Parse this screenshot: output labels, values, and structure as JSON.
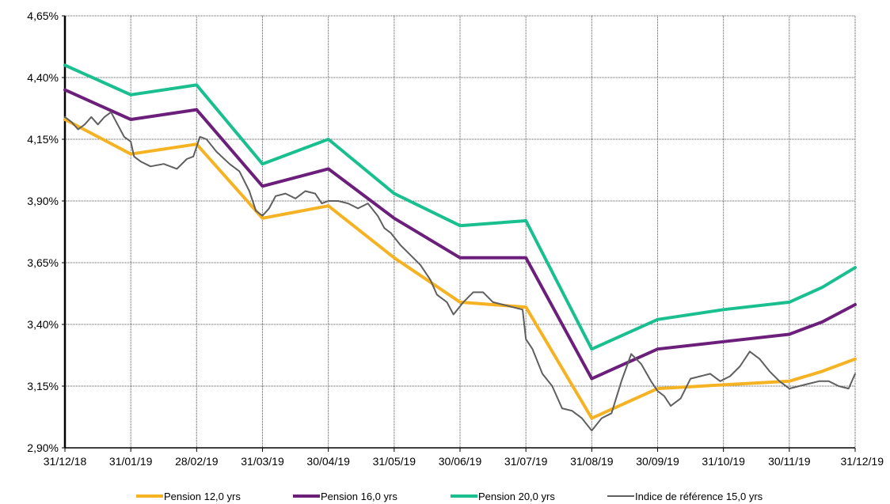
{
  "chart_data": {
    "type": "line",
    "title": "",
    "xlabel": "",
    "ylabel": "",
    "ylim": [
      2.9,
      4.65
    ],
    "y_ticks": [
      2.9,
      3.15,
      3.4,
      3.65,
      3.9,
      4.15,
      4.4,
      4.65
    ],
    "y_tick_labels": [
      "2,90%",
      "3,15%",
      "3,40%",
      "3,65%",
      "3,90%",
      "4,15%",
      "4,40%",
      "4,65%"
    ],
    "x_tick_labels": [
      "31/12/18",
      "31/01/19",
      "28/02/19",
      "31/03/19",
      "30/04/19",
      "31/05/19",
      "30/06/19",
      "31/07/19",
      "31/08/19",
      "30/09/19",
      "31/10/19",
      "30/11/19",
      "31/12/19"
    ],
    "grid": true,
    "legend_position": "bottom",
    "series": [
      {
        "name": "Pension 12,0 yrs",
        "color": "#f5b324",
        "points": [
          [
            0,
            4.23
          ],
          [
            1,
            4.09
          ],
          [
            2,
            4.13
          ],
          [
            3,
            3.83
          ],
          [
            4,
            3.88
          ],
          [
            5,
            3.67
          ],
          [
            6,
            3.49
          ],
          [
            7,
            3.47
          ],
          [
            8,
            3.02
          ],
          [
            9,
            3.14
          ],
          [
            10,
            3.155
          ],
          [
            11,
            3.17
          ],
          [
            11.5,
            3.21
          ],
          [
            12,
            3.26
          ]
        ]
      },
      {
        "name": "Pension 16,0 yrs",
        "color": "#6b1e7a",
        "points": [
          [
            0,
            4.35
          ],
          [
            1,
            4.23
          ],
          [
            2,
            4.27
          ],
          [
            3,
            3.96
          ],
          [
            4,
            4.03
          ],
          [
            5,
            3.83
          ],
          [
            6,
            3.67
          ],
          [
            7,
            3.67
          ],
          [
            8,
            3.18
          ],
          [
            9,
            3.3
          ],
          [
            10,
            3.33
          ],
          [
            11,
            3.36
          ],
          [
            11.5,
            3.41
          ],
          [
            12,
            3.48
          ]
        ]
      },
      {
        "name": "Pension 20,0 yrs",
        "color": "#1abf8f",
        "points": [
          [
            0,
            4.45
          ],
          [
            1,
            4.33
          ],
          [
            2,
            4.37
          ],
          [
            3,
            4.05
          ],
          [
            4,
            4.15
          ],
          [
            5,
            3.93
          ],
          [
            6,
            3.8
          ],
          [
            7,
            3.82
          ],
          [
            8,
            3.3
          ],
          [
            9,
            3.42
          ],
          [
            10,
            3.46
          ],
          [
            11,
            3.49
          ],
          [
            11.5,
            3.55
          ],
          [
            12,
            3.63
          ]
        ]
      },
      {
        "name": "Indice de référence 15,0 yrs",
        "color": "#5f5f5f",
        "points": [
          [
            0,
            4.24
          ],
          [
            0.1,
            4.22
          ],
          [
            0.2,
            4.19
          ],
          [
            0.3,
            4.21
          ],
          [
            0.4,
            4.24
          ],
          [
            0.5,
            4.21
          ],
          [
            0.6,
            4.24
          ],
          [
            0.7,
            4.26
          ],
          [
            0.8,
            4.21
          ],
          [
            0.9,
            4.16
          ],
          [
            1.0,
            4.14
          ],
          [
            1.05,
            4.08
          ],
          [
            1.15,
            4.06
          ],
          [
            1.3,
            4.04
          ],
          [
            1.5,
            4.05
          ],
          [
            1.7,
            4.03
          ],
          [
            1.85,
            4.07
          ],
          [
            1.95,
            4.08
          ],
          [
            2.05,
            4.16
          ],
          [
            2.15,
            4.15
          ],
          [
            2.3,
            4.1
          ],
          [
            2.5,
            4.05
          ],
          [
            2.65,
            4.02
          ],
          [
            2.8,
            3.94
          ],
          [
            2.9,
            3.86
          ],
          [
            3.0,
            3.84
          ],
          [
            3.1,
            3.87
          ],
          [
            3.2,
            3.92
          ],
          [
            3.35,
            3.93
          ],
          [
            3.5,
            3.91
          ],
          [
            3.65,
            3.94
          ],
          [
            3.8,
            3.93
          ],
          [
            3.9,
            3.89
          ],
          [
            4.0,
            3.9
          ],
          [
            4.15,
            3.9
          ],
          [
            4.3,
            3.89
          ],
          [
            4.45,
            3.87
          ],
          [
            4.6,
            3.89
          ],
          [
            4.75,
            3.84
          ],
          [
            4.85,
            3.79
          ],
          [
            4.95,
            3.77
          ],
          [
            5.1,
            3.72
          ],
          [
            5.25,
            3.68
          ],
          [
            5.4,
            3.64
          ],
          [
            5.55,
            3.58
          ],
          [
            5.65,
            3.52
          ],
          [
            5.8,
            3.49
          ],
          [
            5.9,
            3.44
          ],
          [
            6.05,
            3.49
          ],
          [
            6.2,
            3.53
          ],
          [
            6.35,
            3.53
          ],
          [
            6.5,
            3.49
          ],
          [
            6.65,
            3.48
          ],
          [
            6.8,
            3.47
          ],
          [
            6.95,
            3.46
          ],
          [
            7.0,
            3.34
          ],
          [
            7.1,
            3.3
          ],
          [
            7.25,
            3.2
          ],
          [
            7.4,
            3.15
          ],
          [
            7.55,
            3.06
          ],
          [
            7.7,
            3.05
          ],
          [
            7.85,
            3.02
          ],
          [
            8.0,
            2.97
          ],
          [
            8.15,
            3.02
          ],
          [
            8.3,
            3.04
          ],
          [
            8.45,
            3.17
          ],
          [
            8.6,
            3.28
          ],
          [
            8.75,
            3.24
          ],
          [
            8.9,
            3.17
          ],
          [
            9.0,
            3.13
          ],
          [
            9.1,
            3.11
          ],
          [
            9.2,
            3.07
          ],
          [
            9.35,
            3.1
          ],
          [
            9.5,
            3.18
          ],
          [
            9.65,
            3.19
          ],
          [
            9.8,
            3.2
          ],
          [
            9.95,
            3.17
          ],
          [
            10.1,
            3.19
          ],
          [
            10.25,
            3.23
          ],
          [
            10.4,
            3.29
          ],
          [
            10.55,
            3.26
          ],
          [
            10.7,
            3.21
          ],
          [
            10.85,
            3.17
          ],
          [
            11.0,
            3.14
          ],
          [
            11.15,
            3.15
          ],
          [
            11.3,
            3.16
          ],
          [
            11.45,
            3.17
          ],
          [
            11.6,
            3.17
          ],
          [
            11.75,
            3.15
          ],
          [
            11.9,
            3.14
          ],
          [
            12.0,
            3.2
          ]
        ]
      }
    ]
  }
}
